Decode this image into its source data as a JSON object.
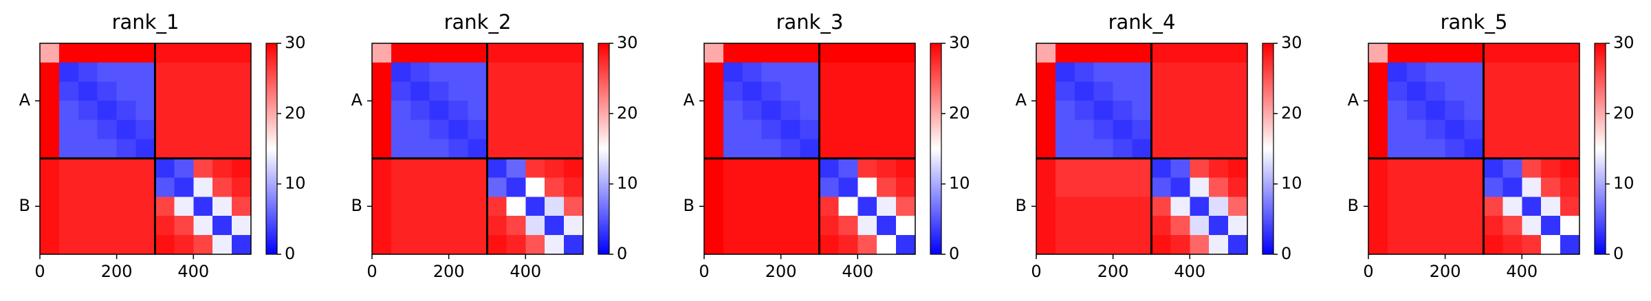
{
  "chart_data": [
    {
      "type": "heatmap",
      "title": "rank_1",
      "x_edges": [
        0,
        50,
        100,
        150,
        200,
        250,
        300,
        350,
        400,
        450,
        500,
        550
      ],
      "y_edges": [
        0,
        50,
        100,
        150,
        200,
        250,
        300,
        350,
        400,
        450,
        500,
        550
      ],
      "z": [
        [
          20,
          30,
          30,
          30,
          30,
          30,
          29,
          29,
          29,
          29,
          29
        ],
        [
          30,
          3,
          4,
          5,
          5,
          5,
          28,
          28,
          28,
          28,
          28
        ],
        [
          30,
          4,
          3,
          4,
          5,
          5,
          28,
          28,
          28,
          28,
          28
        ],
        [
          30,
          5,
          4,
          3,
          4,
          5,
          28,
          28,
          28,
          28,
          28
        ],
        [
          30,
          5,
          5,
          4,
          3,
          4,
          28,
          28,
          28,
          28,
          28
        ],
        [
          30,
          5,
          5,
          5,
          4,
          3,
          28,
          28,
          28,
          28,
          28
        ],
        [
          29,
          28,
          28,
          28,
          28,
          28,
          3,
          5,
          26,
          28,
          29
        ],
        [
          29,
          28,
          28,
          28,
          28,
          28,
          5,
          3,
          14,
          26,
          28
        ],
        [
          29,
          28,
          28,
          28,
          28,
          28,
          26,
          14,
          3,
          14,
          26
        ],
        [
          29,
          28,
          28,
          28,
          28,
          28,
          28,
          26,
          14,
          3,
          14
        ],
        [
          29,
          28,
          28,
          28,
          28,
          28,
          29,
          28,
          26,
          14,
          3
        ]
      ],
      "xlim": [
        0,
        550
      ],
      "ylim": [
        550,
        0
      ],
      "xticks": [
        0,
        200,
        400
      ],
      "yticks": [
        {
          "value": 150,
          "label": "A"
        },
        {
          "value": 425,
          "label": "B"
        }
      ],
      "chain_boundaries": [
        300
      ],
      "clim": [
        0,
        30
      ],
      "colorbar_ticks": [
        0,
        10,
        20,
        30
      ],
      "colormap": [
        "#0000ff",
        "#ffffff",
        "#ff0000"
      ]
    },
    {
      "type": "heatmap",
      "title": "rank_2",
      "x_edges": [
        0,
        50,
        100,
        150,
        200,
        250,
        300,
        350,
        400,
        450,
        500,
        550
      ],
      "y_edges": [
        0,
        50,
        100,
        150,
        200,
        250,
        300,
        350,
        400,
        450,
        500,
        550
      ],
      "z": [
        [
          20,
          30,
          30,
          30,
          30,
          30,
          29,
          29,
          29,
          29,
          29
        ],
        [
          30,
          3,
          4,
          5,
          5,
          5,
          28,
          28,
          28,
          28,
          28
        ],
        [
          30,
          4,
          3,
          4,
          5,
          5,
          28,
          28,
          28,
          28,
          28
        ],
        [
          30,
          5,
          4,
          3,
          4,
          5,
          28,
          28,
          28,
          28,
          28
        ],
        [
          30,
          5,
          5,
          4,
          3,
          4,
          28,
          28,
          28,
          28,
          28
        ],
        [
          30,
          5,
          5,
          5,
          4,
          3,
          28,
          28,
          28,
          28,
          28
        ],
        [
          29,
          28,
          28,
          28,
          28,
          28,
          3,
          6,
          27,
          28,
          29
        ],
        [
          29,
          28,
          28,
          28,
          28,
          28,
          6,
          3,
          15,
          26,
          28
        ],
        [
          29,
          28,
          28,
          28,
          28,
          28,
          27,
          15,
          3,
          13,
          25
        ],
        [
          29,
          28,
          28,
          28,
          28,
          28,
          28,
          26,
          13,
          3,
          14
        ],
        [
          29,
          28,
          28,
          28,
          28,
          28,
          29,
          28,
          25,
          14,
          3
        ]
      ],
      "xlim": [
        0,
        550
      ],
      "ylim": [
        550,
        0
      ],
      "xticks": [
        0,
        200,
        400
      ],
      "yticks": [
        {
          "value": 150,
          "label": "A"
        },
        {
          "value": 425,
          "label": "B"
        }
      ],
      "chain_boundaries": [
        300
      ],
      "clim": [
        0,
        30
      ],
      "colorbar_ticks": [
        0,
        10,
        20,
        30
      ],
      "colormap": [
        "#0000ff",
        "#ffffff",
        "#ff0000"
      ]
    },
    {
      "type": "heatmap",
      "title": "rank_3",
      "x_edges": [
        0,
        50,
        100,
        150,
        200,
        250,
        300,
        350,
        400,
        450,
        500,
        550
      ],
      "y_edges": [
        0,
        50,
        100,
        150,
        200,
        250,
        300,
        350,
        400,
        450,
        500,
        550
      ],
      "z": [
        [
          20,
          30,
          30,
          30,
          30,
          30,
          30,
          30,
          30,
          30,
          30
        ],
        [
          30,
          3,
          4,
          5,
          5,
          5,
          29,
          29,
          29,
          29,
          29
        ],
        [
          30,
          4,
          3,
          4,
          5,
          5,
          29,
          29,
          29,
          29,
          29
        ],
        [
          30,
          5,
          4,
          3,
          4,
          5,
          29,
          29,
          29,
          29,
          29
        ],
        [
          30,
          5,
          5,
          4,
          3,
          4,
          29,
          29,
          29,
          29,
          29
        ],
        [
          30,
          5,
          5,
          5,
          4,
          3,
          29,
          29,
          29,
          29,
          29
        ],
        [
          30,
          29,
          29,
          29,
          29,
          29,
          3,
          5,
          27,
          28,
          29
        ],
        [
          30,
          29,
          29,
          29,
          29,
          29,
          5,
          3,
          15,
          26,
          28
        ],
        [
          30,
          29,
          29,
          29,
          29,
          29,
          27,
          15,
          3,
          14,
          25
        ],
        [
          30,
          29,
          29,
          29,
          29,
          29,
          28,
          26,
          14,
          3,
          15
        ],
        [
          30,
          29,
          29,
          29,
          29,
          29,
          29,
          28,
          25,
          15,
          3
        ]
      ],
      "xlim": [
        0,
        550
      ],
      "ylim": [
        550,
        0
      ],
      "xticks": [
        0,
        200,
        400
      ],
      "yticks": [
        {
          "value": 150,
          "label": "A"
        },
        {
          "value": 425,
          "label": "B"
        }
      ],
      "chain_boundaries": [
        300
      ],
      "clim": [
        0,
        30
      ],
      "colorbar_ticks": [
        0,
        10,
        20,
        30
      ],
      "colormap": [
        "#0000ff",
        "#ffffff",
        "#ff0000"
      ]
    },
    {
      "type": "heatmap",
      "title": "rank_4",
      "x_edges": [
        0,
        50,
        100,
        150,
        200,
        250,
        300,
        350,
        400,
        450,
        500,
        550
      ],
      "y_edges": [
        0,
        50,
        100,
        150,
        200,
        250,
        300,
        350,
        400,
        450,
        500,
        550
      ],
      "z": [
        [
          20,
          30,
          30,
          30,
          30,
          30,
          29,
          29,
          29,
          29,
          29
        ],
        [
          30,
          3,
          4,
          5,
          5,
          5,
          28,
          28,
          28,
          28,
          28
        ],
        [
          30,
          4,
          3,
          4,
          5,
          5,
          28,
          28,
          28,
          28,
          28
        ],
        [
          30,
          5,
          4,
          3,
          4,
          5,
          28,
          28,
          28,
          28,
          28
        ],
        [
          30,
          5,
          5,
          4,
          3,
          4,
          28,
          28,
          28,
          28,
          28
        ],
        [
          30,
          5,
          5,
          5,
          4,
          3,
          28,
          28,
          28,
          28,
          28
        ],
        [
          29,
          27,
          27,
          27,
          27,
          27,
          3,
          5,
          26,
          28,
          29
        ],
        [
          29,
          27,
          27,
          27,
          27,
          27,
          5,
          3,
          14,
          25,
          28
        ],
        [
          29,
          28,
          28,
          28,
          28,
          28,
          26,
          14,
          3,
          13,
          24
        ],
        [
          29,
          28,
          28,
          28,
          28,
          28,
          28,
          25,
          13,
          3,
          14
        ],
        [
          29,
          28,
          28,
          28,
          28,
          28,
          29,
          28,
          24,
          14,
          3
        ]
      ],
      "xlim": [
        0,
        550
      ],
      "ylim": [
        550,
        0
      ],
      "xticks": [
        0,
        200,
        400
      ],
      "yticks": [
        {
          "value": 150,
          "label": "A"
        },
        {
          "value": 425,
          "label": "B"
        }
      ],
      "chain_boundaries": [
        300
      ],
      "clim": [
        0,
        30
      ],
      "colorbar_ticks": [
        0,
        10,
        20,
        30
      ],
      "colormap": [
        "#0000ff",
        "#ffffff",
        "#ff0000"
      ]
    },
    {
      "type": "heatmap",
      "title": "rank_5",
      "x_edges": [
        0,
        50,
        100,
        150,
        200,
        250,
        300,
        350,
        400,
        450,
        500,
        550
      ],
      "y_edges": [
        0,
        50,
        100,
        150,
        200,
        250,
        300,
        350,
        400,
        450,
        500,
        550
      ],
      "z": [
        [
          20,
          30,
          30,
          30,
          30,
          30,
          29,
          29,
          29,
          29,
          29
        ],
        [
          30,
          3,
          4,
          5,
          5,
          5,
          28,
          28,
          28,
          28,
          28
        ],
        [
          30,
          4,
          3,
          4,
          5,
          5,
          28,
          28,
          28,
          28,
          28
        ],
        [
          30,
          5,
          4,
          3,
          4,
          5,
          28,
          28,
          28,
          28,
          28
        ],
        [
          30,
          5,
          5,
          4,
          3,
          4,
          28,
          28,
          28,
          28,
          28
        ],
        [
          30,
          5,
          5,
          5,
          4,
          3,
          28,
          28,
          28,
          28,
          28
        ],
        [
          29,
          28,
          28,
          28,
          28,
          28,
          3,
          5,
          26,
          28,
          29
        ],
        [
          29,
          28,
          28,
          28,
          28,
          28,
          5,
          3,
          14,
          26,
          28
        ],
        [
          29,
          28,
          28,
          28,
          28,
          28,
          26,
          14,
          3,
          14,
          27
        ],
        [
          29,
          28,
          28,
          28,
          28,
          28,
          28,
          26,
          14,
          3,
          15
        ],
        [
          29,
          28,
          28,
          28,
          28,
          28,
          29,
          28,
          27,
          15,
          3
        ]
      ],
      "xlim": [
        0,
        550
      ],
      "ylim": [
        550,
        0
      ],
      "xticks": [
        0,
        200,
        400
      ],
      "yticks": [
        {
          "value": 150,
          "label": "A"
        },
        {
          "value": 425,
          "label": "B"
        }
      ],
      "chain_boundaries": [
        300
      ],
      "clim": [
        0,
        30
      ],
      "colorbar_ticks": [
        0,
        10,
        20,
        30
      ],
      "colormap": [
        "#0000ff",
        "#ffffff",
        "#ff0000"
      ]
    }
  ]
}
